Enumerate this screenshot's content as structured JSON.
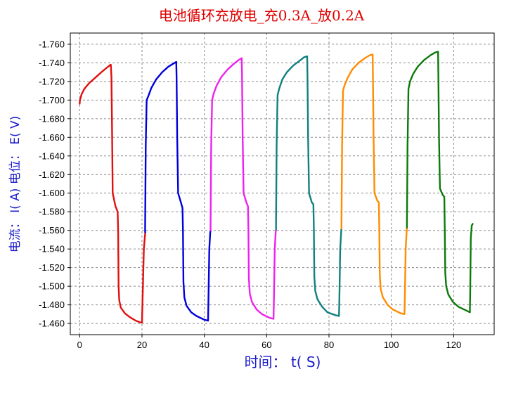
{
  "chart_data": {
    "type": "line",
    "title": "电池循环充放电_充0.3A_放0.2A",
    "xlabel": "时间： t( S)",
    "ylabel": "电流： I( A)    电位： E( V)",
    "xlim": [
      -3,
      133
    ],
    "ylim": [
      -1.448,
      -1.772
    ],
    "x_ticks": [
      0,
      20,
      40,
      60,
      80,
      100,
      120
    ],
    "x_tick_labels": [
      "0",
      "20",
      "40",
      "60",
      "80",
      "100",
      "120"
    ],
    "y_ticks": [
      -1.76,
      -1.74,
      -1.72,
      -1.7,
      -1.68,
      -1.66,
      -1.64,
      -1.62,
      -1.6,
      -1.58,
      -1.56,
      -1.54,
      -1.52,
      -1.5,
      -1.48,
      -1.46
    ],
    "y_tick_labels": [
      "-1.760",
      "-1.740",
      "-1.720",
      "-1.700",
      "-1.680",
      "-1.660",
      "-1.640",
      "-1.620",
      "-1.600",
      "-1.580",
      "-1.560",
      "-1.540",
      "-1.520",
      "-1.500",
      "-1.480",
      "-1.460"
    ],
    "grid": true,
    "series": [
      {
        "color": "#e01010",
        "x": [
          0,
          0.1,
          0.6,
          1.5,
          3,
          5,
          7,
          8.8,
          9.9,
          10,
          10.2,
          10.4,
          10.6,
          11.5,
          12.2,
          12.35,
          12.5,
          12.7,
          13.2,
          14.5,
          16,
          18,
          19.6,
          20,
          20.1,
          20.3,
          20.6,
          21,
          21.1
        ],
        "y": [
          -1.696,
          -1.7,
          -1.706,
          -1.712,
          -1.718,
          -1.724,
          -1.73,
          -1.735,
          -1.738,
          -1.738,
          -1.725,
          -1.668,
          -1.6,
          -1.586,
          -1.58,
          -1.56,
          -1.5,
          -1.485,
          -1.477,
          -1.471,
          -1.467,
          -1.463,
          -1.461,
          -1.461,
          -1.475,
          -1.5,
          -1.54,
          -1.556,
          -1.558
        ]
      },
      {
        "color": "#0000dd",
        "x": [
          21,
          21.2,
          21.5,
          22,
          23,
          24.5,
          26.5,
          28.5,
          30,
          31,
          31.1,
          31.3,
          31.6,
          32.5,
          33,
          33.15,
          33.3,
          33.6,
          34.3,
          35.8,
          37.5,
          40,
          41.2,
          41.3,
          41.6,
          41.9,
          42
        ],
        "y": [
          -1.558,
          -1.65,
          -1.7,
          -1.704,
          -1.713,
          -1.722,
          -1.73,
          -1.736,
          -1.739,
          -1.741,
          -1.725,
          -1.66,
          -1.6,
          -1.59,
          -1.584,
          -1.56,
          -1.505,
          -1.488,
          -1.479,
          -1.472,
          -1.468,
          -1.464,
          -1.463,
          -1.48,
          -1.54,
          -1.558,
          -1.56
        ]
      },
      {
        "color": "#ee22ee",
        "x": [
          42,
          42.2,
          42.5,
          43,
          44,
          45.5,
          47.5,
          49.5,
          51,
          52,
          52.1,
          52.3,
          52.6,
          53.5,
          54,
          54.15,
          54.3,
          54.6,
          55.3,
          56.8,
          58.5,
          61,
          62.2,
          62.3,
          62.6,
          62.9,
          63
        ],
        "y": [
          -1.56,
          -1.65,
          -1.7,
          -1.707,
          -1.716,
          -1.725,
          -1.733,
          -1.739,
          -1.743,
          -1.745,
          -1.725,
          -1.66,
          -1.6,
          -1.59,
          -1.586,
          -1.56,
          -1.508,
          -1.492,
          -1.483,
          -1.475,
          -1.47,
          -1.466,
          -1.465,
          -1.48,
          -1.54,
          -1.558,
          -1.561
        ]
      },
      {
        "color": "#108080",
        "x": [
          63,
          63.2,
          63.5,
          64,
          65,
          66.5,
          68.5,
          70.5,
          72,
          73,
          73.1,
          73.3,
          73.6,
          74.5,
          75,
          75.15,
          75.3,
          75.6,
          76.3,
          77.8,
          79.5,
          82,
          83.2,
          83.3,
          83.6,
          83.9,
          84
        ],
        "y": [
          -1.561,
          -1.65,
          -1.705,
          -1.712,
          -1.722,
          -1.73,
          -1.737,
          -1.742,
          -1.746,
          -1.747,
          -1.725,
          -1.66,
          -1.6,
          -1.59,
          -1.588,
          -1.56,
          -1.51,
          -1.495,
          -1.486,
          -1.478,
          -1.472,
          -1.469,
          -1.468,
          -1.48,
          -1.54,
          -1.558,
          -1.562
        ]
      },
      {
        "color": "#ff8c00",
        "x": [
          84,
          84.2,
          84.5,
          85,
          86,
          87.5,
          89.5,
          91.5,
          93,
          94,
          94.1,
          94.3,
          94.6,
          95.5,
          96,
          96.15,
          96.3,
          96.6,
          97.3,
          98.8,
          100.5,
          103,
          104.2,
          104.3,
          104.6,
          104.9,
          105
        ],
        "y": [
          -1.562,
          -1.65,
          -1.71,
          -1.716,
          -1.724,
          -1.733,
          -1.74,
          -1.745,
          -1.748,
          -1.749,
          -1.725,
          -1.66,
          -1.6,
          -1.592,
          -1.59,
          -1.56,
          -1.512,
          -1.497,
          -1.488,
          -1.48,
          -1.475,
          -1.471,
          -1.47,
          -1.48,
          -1.54,
          -1.558,
          -1.563
        ]
      },
      {
        "color": "#0a7a0a",
        "x": [
          105,
          105.2,
          105.5,
          106,
          107,
          108.5,
          110.5,
          112.5,
          114,
          115,
          115.1,
          115.3,
          115.6,
          116.5,
          117,
          117.15,
          117.3,
          117.6,
          118.3,
          119.8,
          121.5,
          124,
          125.2,
          125.3,
          125.5,
          125.8,
          126.1
        ],
        "y": [
          -1.563,
          -1.65,
          -1.712,
          -1.72,
          -1.728,
          -1.736,
          -1.743,
          -1.748,
          -1.751,
          -1.752,
          -1.725,
          -1.66,
          -1.605,
          -1.598,
          -1.596,
          -1.56,
          -1.515,
          -1.5,
          -1.491,
          -1.483,
          -1.478,
          -1.474,
          -1.472,
          -1.49,
          -1.552,
          -1.565,
          -1.567
        ]
      }
    ]
  }
}
